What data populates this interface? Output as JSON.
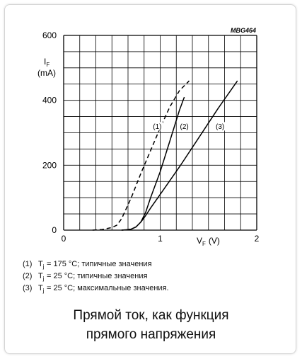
{
  "chart_data": {
    "type": "line",
    "code": "MBG464",
    "xlabel": {
      "symbol": "V",
      "sub": "F",
      "unit": "(V)"
    },
    "ylabel": {
      "symbol": "I",
      "sub": "F",
      "unit": "(mA)"
    },
    "xlim": [
      0,
      2
    ],
    "ylim": [
      0,
      600
    ],
    "xticks": [
      "0",
      "1",
      "2"
    ],
    "yticks": [
      "0",
      "200",
      "400",
      "600"
    ],
    "grid": true,
    "series": [
      {
        "name": "(1)",
        "style": "dashed",
        "x": [
          0.3,
          0.4,
          0.5,
          0.55,
          0.6,
          0.7,
          0.8,
          0.9,
          1.0,
          1.1,
          1.2,
          1.3
        ],
        "y": [
          0,
          2,
          8,
          15,
          35,
          100,
          175,
          245,
          315,
          380,
          430,
          460
        ]
      },
      {
        "name": "(2)",
        "style": "solid",
        "x": [
          0.6,
          0.65,
          0.7,
          0.75,
          0.8,
          0.85,
          0.9,
          1.0,
          1.1,
          1.2,
          1.25
        ],
        "y": [
          0,
          1,
          3,
          10,
          25,
          55,
          100,
          180,
          275,
          370,
          410
        ]
      },
      {
        "name": "(3)",
        "style": "solid",
        "x": [
          0.6,
          0.65,
          0.7,
          0.75,
          0.8,
          0.85,
          0.9,
          1.0,
          1.2,
          1.4,
          1.6,
          1.8
        ],
        "y": [
          0,
          1,
          3,
          10,
          25,
          45,
          68,
          110,
          195,
          285,
          375,
          460
        ]
      }
    ],
    "annotations": [
      {
        "text": "(1)",
        "x": 0.97,
        "y": 320
      },
      {
        "text": "(2)",
        "x": 1.25,
        "y": 320
      },
      {
        "text": "(3)",
        "x": 1.62,
        "y": 320
      }
    ]
  },
  "legend": [
    {
      "num": "(1)",
      "t": "T",
      "sub": "j",
      "text": "= 175 °C; типичные значения"
    },
    {
      "num": "(2)",
      "t": "T",
      "sub": "j",
      "text": "= 25 °C; типичные значения"
    },
    {
      "num": "(3)",
      "t": "T",
      "sub": "j",
      "text": "= 25 °C;  максимальные значения."
    }
  ],
  "caption": [
    "Прямой ток, как функция",
    "прямого напряжения"
  ],
  "colors": {
    "line": "#000000",
    "grid": "#000000",
    "text": "#111111"
  }
}
